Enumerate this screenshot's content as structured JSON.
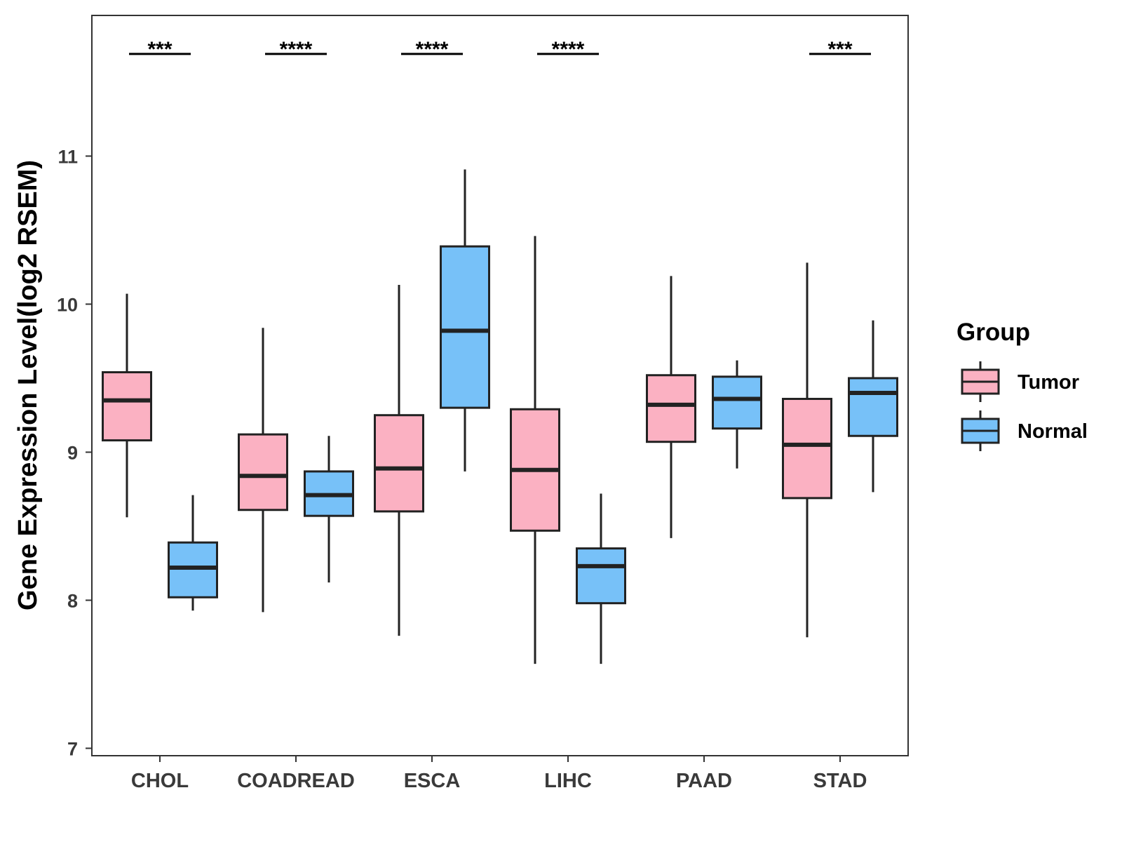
{
  "chart_data": {
    "type": "boxplot",
    "title": "",
    "xlabel": "",
    "ylabel": "Gene Expression Level(log2 RSEM)",
    "ylim": [
      6.95,
      11.95
    ],
    "yticks": [
      7,
      8,
      9,
      10,
      11
    ],
    "grid": false,
    "legend": {
      "title": "Group",
      "position": "right",
      "entries": [
        {
          "name": "Tumor",
          "color": "#FBB1C2"
        },
        {
          "name": "Normal",
          "color": "#77C1F8"
        }
      ]
    },
    "categories": [
      "CHOL",
      "COADREAD",
      "ESCA",
      "LIHC",
      "PAAD",
      "STAD"
    ],
    "series": [
      {
        "name": "Tumor",
        "color": "#FBB1C2",
        "boxes": [
          {
            "min": 8.56,
            "q1": 9.08,
            "median": 9.35,
            "q3": 9.54,
            "max": 10.07
          },
          {
            "min": 7.92,
            "q1": 8.61,
            "median": 8.84,
            "q3": 9.12,
            "max": 9.84
          },
          {
            "min": 7.76,
            "q1": 8.6,
            "median": 8.89,
            "q3": 9.25,
            "max": 10.13
          },
          {
            "min": 7.57,
            "q1": 8.47,
            "median": 8.88,
            "q3": 9.29,
            "max": 10.46
          },
          {
            "min": 8.42,
            "q1": 9.07,
            "median": 9.32,
            "q3": 9.52,
            "max": 10.19
          },
          {
            "min": 7.75,
            "q1": 8.69,
            "median": 9.05,
            "q3": 9.36,
            "max": 10.28
          }
        ]
      },
      {
        "name": "Normal",
        "color": "#77C1F8",
        "boxes": [
          {
            "min": 7.93,
            "q1": 8.02,
            "median": 8.22,
            "q3": 8.39,
            "max": 8.71
          },
          {
            "min": 8.12,
            "q1": 8.57,
            "median": 8.71,
            "q3": 8.87,
            "max": 9.11
          },
          {
            "min": 8.87,
            "q1": 9.3,
            "median": 9.82,
            "q3": 10.39,
            "max": 10.91
          },
          {
            "min": 7.57,
            "q1": 7.98,
            "median": 8.23,
            "q3": 8.35,
            "max": 8.72
          },
          {
            "min": 8.89,
            "q1": 9.16,
            "median": 9.36,
            "q3": 9.51,
            "max": 9.62
          },
          {
            "min": 8.73,
            "q1": 9.11,
            "median": 9.4,
            "q3": 9.5,
            "max": 9.89
          }
        ]
      }
    ],
    "annotations": [
      {
        "category": "CHOL",
        "label": "***",
        "y": 11.69
      },
      {
        "category": "COADREAD",
        "label": "****",
        "y": 11.69
      },
      {
        "category": "ESCA",
        "label": "****",
        "y": 11.69
      },
      {
        "category": "LIHC",
        "label": "****",
        "y": 11.69
      },
      {
        "category": "STAD",
        "label": "***",
        "y": 11.69
      }
    ]
  }
}
